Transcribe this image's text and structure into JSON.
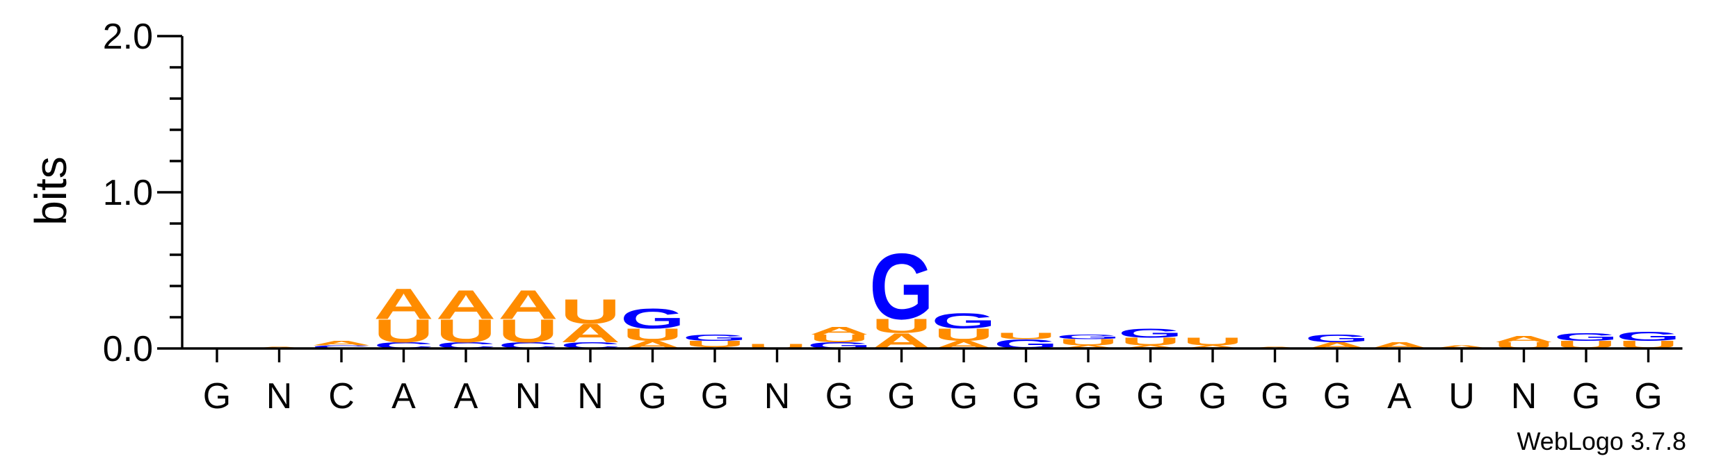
{
  "chart_data": {
    "type": "sequence-logo",
    "title": "",
    "ylabel": "bits",
    "xlabel": "",
    "ylim": [
      0,
      2.0
    ],
    "yticks": [
      "0.0",
      "1.0",
      "2.0"
    ],
    "credit": "WebLogo 3.7.8",
    "colors": {
      "A": "#ff8c00",
      "U": "#ff8c00",
      "G": "#0000ff",
      "C": "#0000ff"
    },
    "positions": [
      {
        "label": "G",
        "stack": []
      },
      {
        "label": "N",
        "stack": [
          {
            "letter": "A",
            "bits": 0.01
          }
        ]
      },
      {
        "label": "C",
        "stack": [
          {
            "letter": "C",
            "bits": 0.02
          },
          {
            "letter": "A",
            "bits": 0.03
          }
        ]
      },
      {
        "label": "A",
        "stack": [
          {
            "letter": "C",
            "bits": 0.04
          },
          {
            "letter": "U",
            "bits": 0.15
          },
          {
            "letter": "A",
            "bits": 0.2
          }
        ]
      },
      {
        "label": "A",
        "stack": [
          {
            "letter": "C",
            "bits": 0.04
          },
          {
            "letter": "U",
            "bits": 0.15
          },
          {
            "letter": "A",
            "bits": 0.19
          }
        ]
      },
      {
        "label": "N",
        "stack": [
          {
            "letter": "C",
            "bits": 0.04
          },
          {
            "letter": "U",
            "bits": 0.15
          },
          {
            "letter": "A",
            "bits": 0.19
          }
        ]
      },
      {
        "label": "N",
        "stack": [
          {
            "letter": "C",
            "bits": 0.04
          },
          {
            "letter": "A",
            "bits": 0.12
          },
          {
            "letter": "U",
            "bits": 0.16
          }
        ]
      },
      {
        "label": "G",
        "stack": [
          {
            "letter": "A",
            "bits": 0.05
          },
          {
            "letter": "U",
            "bits": 0.08
          },
          {
            "letter": "G",
            "bits": 0.13
          }
        ]
      },
      {
        "label": "G",
        "stack": [
          {
            "letter": "A",
            "bits": 0.01
          },
          {
            "letter": "U",
            "bits": 0.04
          },
          {
            "letter": "G",
            "bits": 0.04
          }
        ]
      },
      {
        "label": "N",
        "stack": [
          {
            "letter": "U",
            "bits": 0.03
          }
        ]
      },
      {
        "label": "G",
        "stack": [
          {
            "letter": "G",
            "bits": 0.04
          },
          {
            "letter": "U",
            "bits": 0.05
          },
          {
            "letter": "A",
            "bits": 0.05
          }
        ]
      },
      {
        "label": "G",
        "stack": [
          {
            "letter": "A",
            "bits": 0.1
          },
          {
            "letter": "U",
            "bits": 0.09
          },
          {
            "letter": "G",
            "bits": 0.43
          }
        ]
      },
      {
        "label": "G",
        "stack": [
          {
            "letter": "A",
            "bits": 0.05
          },
          {
            "letter": "U",
            "bits": 0.08
          },
          {
            "letter": "G",
            "bits": 0.1
          }
        ]
      },
      {
        "label": "G",
        "stack": [
          {
            "letter": "G",
            "bits": 0.06
          },
          {
            "letter": "U",
            "bits": 0.04
          }
        ]
      },
      {
        "label": "G",
        "stack": [
          {
            "letter": "A",
            "bits": 0.02
          },
          {
            "letter": "U",
            "bits": 0.04
          },
          {
            "letter": "G",
            "bits": 0.03
          }
        ]
      },
      {
        "label": "G",
        "stack": [
          {
            "letter": "A",
            "bits": 0.02
          },
          {
            "letter": "U",
            "bits": 0.05
          },
          {
            "letter": "G",
            "bits": 0.06
          }
        ]
      },
      {
        "label": "G",
        "stack": [
          {
            "letter": "A",
            "bits": 0.02
          },
          {
            "letter": "U",
            "bits": 0.05
          }
        ]
      },
      {
        "label": "G",
        "stack": [
          {
            "letter": "A",
            "bits": 0.01
          }
        ]
      },
      {
        "label": "G",
        "stack": [
          {
            "letter": "A",
            "bits": 0.04
          },
          {
            "letter": "G",
            "bits": 0.05
          }
        ]
      },
      {
        "label": "A",
        "stack": [
          {
            "letter": "A",
            "bits": 0.04
          }
        ]
      },
      {
        "label": "U",
        "stack": [
          {
            "letter": "A",
            "bits": 0.02
          }
        ]
      },
      {
        "label": "N",
        "stack": [
          {
            "letter": "U",
            "bits": 0.04
          },
          {
            "letter": "A",
            "bits": 0.04
          }
        ]
      },
      {
        "label": "G",
        "stack": [
          {
            "letter": "U",
            "bits": 0.05
          },
          {
            "letter": "G",
            "bits": 0.05
          }
        ]
      },
      {
        "label": "G",
        "stack": [
          {
            "letter": "U",
            "bits": 0.05
          },
          {
            "letter": "G",
            "bits": 0.06
          }
        ]
      }
    ]
  }
}
